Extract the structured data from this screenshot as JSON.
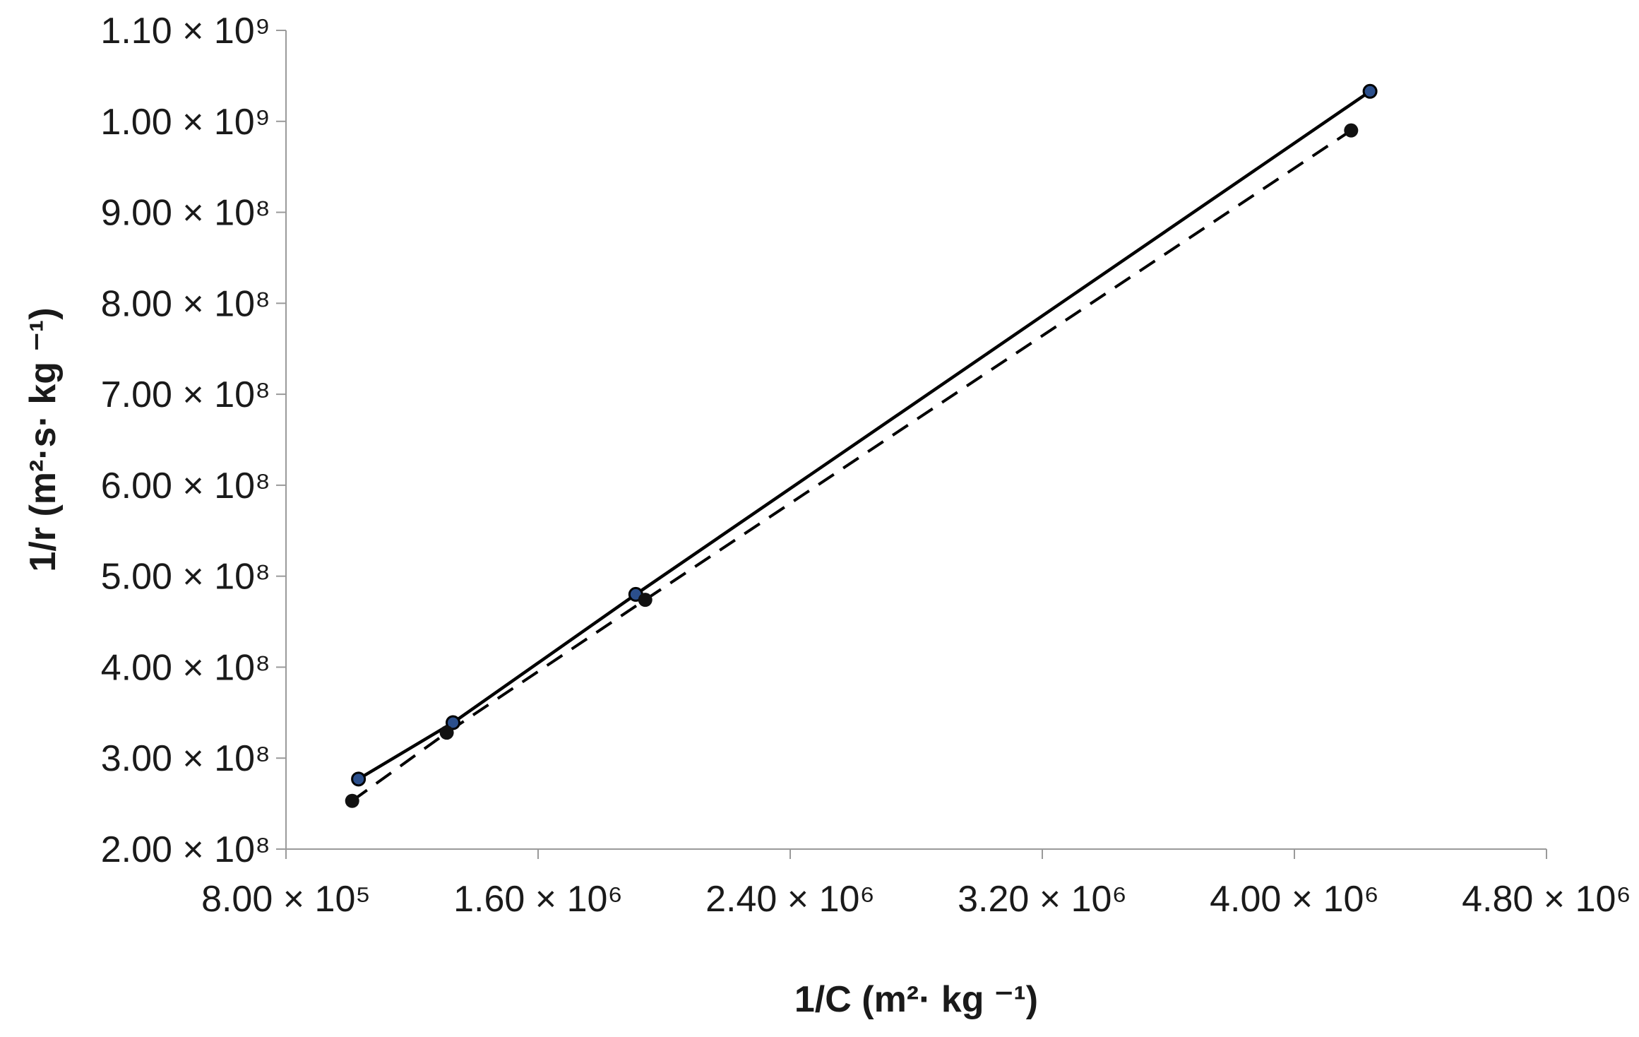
{
  "chart_data": {
    "type": "scatter",
    "xlabel": "1/C (m²· kg ⁻¹)",
    "ylabel": "1/r (m²·s· kg ⁻¹)",
    "xlim": [
      800000,
      4800000
    ],
    "ylim": [
      200000000,
      1100000000
    ],
    "x_ticks": [
      {
        "value": 800000,
        "label": "8.00 × 10⁵"
      },
      {
        "value": 1600000,
        "label": "1.60 × 10⁶"
      },
      {
        "value": 2400000,
        "label": "2.40 × 10⁶"
      },
      {
        "value": 3200000,
        "label": "3.20 × 10⁶"
      },
      {
        "value": 4000000,
        "label": "4.00 × 10⁶"
      },
      {
        "value": 4800000,
        "label": "4.80 × 10⁶"
      }
    ],
    "y_ticks": [
      {
        "value": 200000000,
        "label": "2.00 × 10⁸"
      },
      {
        "value": 300000000,
        "label": "3.00 × 10⁸"
      },
      {
        "value": 400000000,
        "label": "4.00 × 10⁸"
      },
      {
        "value": 500000000,
        "label": "5.00 × 10⁸"
      },
      {
        "value": 600000000,
        "label": "6.00 × 10⁸"
      },
      {
        "value": 700000000,
        "label": "7.00 × 10⁸"
      },
      {
        "value": 800000000,
        "label": "8.00 × 10⁸"
      },
      {
        "value": 900000000,
        "label": "9.00 × 10⁸"
      },
      {
        "value": 1000000000,
        "label": "1.00 × 10⁹"
      },
      {
        "value": 1100000000,
        "label": "1.10 × 10⁹"
      }
    ],
    "grid": false,
    "series": [
      {
        "line_style": "solid",
        "marker_color": "#2b4f8c",
        "x": [
          1030000,
          1330000,
          1910000,
          4240000
        ],
        "y": [
          277000000,
          339000000,
          480000000,
          1033000000
        ]
      },
      {
        "line_style": "dashed",
        "marker_color": "#111111",
        "x": [
          1010000,
          1310000,
          1940000,
          4180000
        ],
        "y": [
          253000000,
          328000000,
          474000000,
          990000000
        ]
      }
    ]
  }
}
